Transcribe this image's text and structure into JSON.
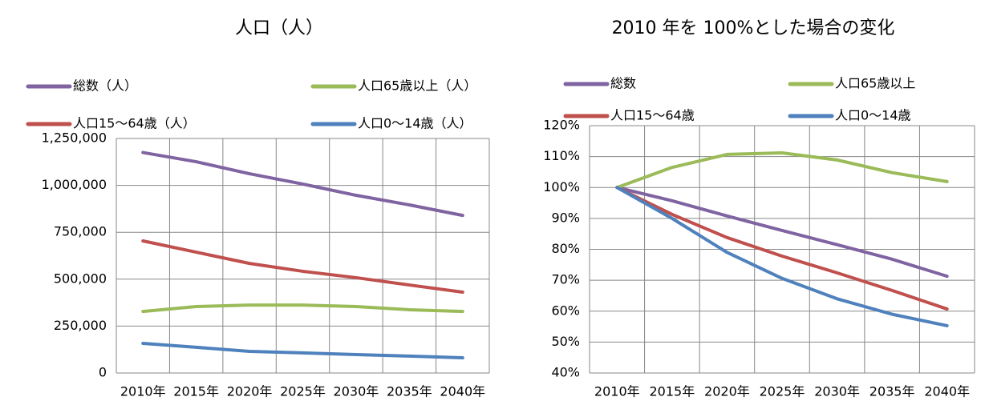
{
  "chart_data": [
    {
      "type": "line",
      "title": "人口（人）",
      "categories": [
        "2010年",
        "2015年",
        "2020年",
        "2025年",
        "2030年",
        "2035年",
        "2040年"
      ],
      "series": [
        {
          "name": "総数（人）",
          "color": "#8064a2",
          "values": [
            1175000,
            1126000,
            1062000,
            1007000,
            947000,
            896000,
            840000
          ]
        },
        {
          "name": "人口65歳以上（人）",
          "color": "#9bbb59",
          "values": [
            328000,
            354000,
            362000,
            362000,
            354000,
            337000,
            328000
          ]
        },
        {
          "name": "人口15～64歳（人）",
          "color": "#c0504d",
          "values": [
            704000,
            644000,
            584000,
            542000,
            508000,
            469000,
            431000
          ]
        },
        {
          "name": "人口0～14歳（人）",
          "color": "#4f81bd",
          "values": [
            158000,
            137000,
            115000,
            107000,
            98000,
            90000,
            81000
          ]
        }
      ],
      "ylim": [
        0,
        1250000
      ],
      "yticks": [
        0,
        {
          "value": 250000,
          "label": "250,000"
        },
        {
          "value": 500000,
          "label": "500,000"
        },
        {
          "value": 750000,
          "label": "750,000"
        },
        {
          "value": 1000000,
          "label": "1,000,000"
        },
        {
          "value": 1250000,
          "label": "1,250,000"
        }
      ],
      "grid": true
    },
    {
      "type": "line",
      "title": "2010 年を 100%とした場合の変化",
      "categories": [
        "2010年",
        "2015年",
        "2020年",
        "2025年",
        "2030年",
        "2035年",
        "2040年"
      ],
      "series": [
        {
          "name": "総数",
          "color": "#8064a2",
          "values": [
            100,
            95.7,
            90.8,
            86.1,
            81.5,
            76.8,
            71.3
          ]
        },
        {
          "name": "人口65歳以上",
          "color": "#9bbb59",
          "values": [
            100,
            106.5,
            110.7,
            111.2,
            108.9,
            104.8,
            101.9
          ]
        },
        {
          "name": "人口15～64歳",
          "color": "#c0504d",
          "values": [
            100,
            91.3,
            83.8,
            77.8,
            72.4,
            66.7,
            60.7
          ]
        },
        {
          "name": "人口0～14歳",
          "color": "#4f81bd",
          "values": [
            100,
            90,
            79,
            70.6,
            64,
            59,
            55.3
          ]
        }
      ],
      "ylim": [
        40,
        120
      ],
      "yticks": [
        {
          "value": 40,
          "label": "40%"
        },
        {
          "value": 50,
          "label": "50%"
        },
        {
          "value": 60,
          "label": "60%"
        },
        {
          "value": 70,
          "label": "70%"
        },
        {
          "value": 80,
          "label": "80%"
        },
        {
          "value": 90,
          "label": "90%"
        },
        {
          "value": 100,
          "label": "100%"
        },
        {
          "value": 110,
          "label": "110%"
        },
        {
          "value": 120,
          "label": "120%"
        }
      ],
      "grid": true
    }
  ]
}
